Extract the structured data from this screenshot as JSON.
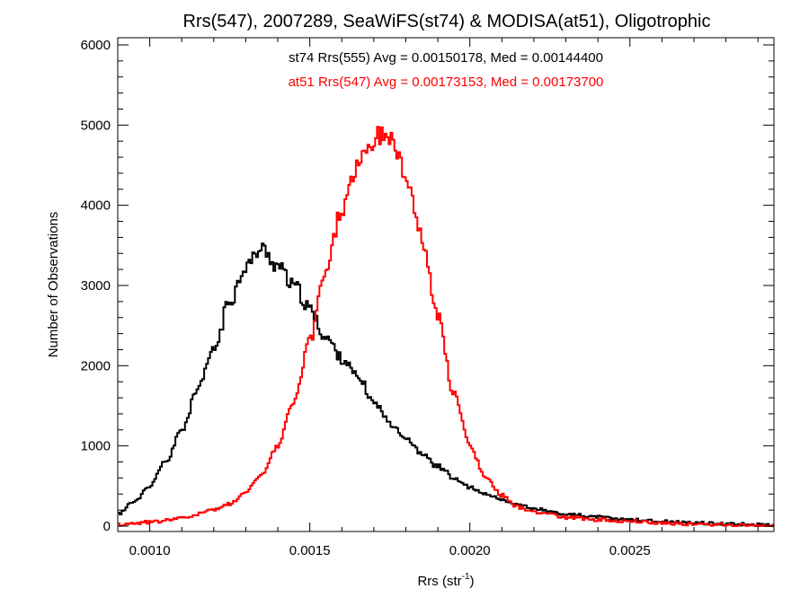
{
  "chart_data": {
    "type": "line",
    "title": "Rrs(547), 2007289, SeaWiFS(st74) & MODISA(at51), Oligotrophic",
    "xlabel": "Rrs (str",
    "xlabel_sup": "-1",
    "xlabel_end": ")",
    "ylabel": "Number of Observations",
    "xlim": [
      0.0009,
      0.00295
    ],
    "ylim": [
      0,
      6000
    ],
    "x_ticks": [
      0.001,
      0.0015,
      0.002,
      0.0025
    ],
    "x_tick_labels": [
      "0.0010",
      "0.0015",
      "0.0020",
      "0.0025"
    ],
    "y_ticks": [
      0,
      1000,
      2000,
      3000,
      4000,
      5000,
      6000
    ],
    "y_tick_labels": [
      "0",
      "1000",
      "2000",
      "3000",
      "4000",
      "5000",
      "6000"
    ],
    "grid": false,
    "annotations": [
      {
        "text": "st74 Rrs(555) Avg = 0.00150178, Med = 0.00144400",
        "color": "#000000"
      },
      {
        "text": "at51 Rrs(547) Avg = 0.00173153, Med = 0.00173700",
        "color": "#ff0000"
      }
    ],
    "series": [
      {
        "color": "#000000",
        "x": [
          0.0009,
          0.00095,
          0.001,
          0.00105,
          0.0011,
          0.00115,
          0.0012,
          0.00125,
          0.0013,
          0.00135,
          0.0014,
          0.00145,
          0.0015,
          0.00155,
          0.0016,
          0.00165,
          0.0017,
          0.00175,
          0.0018,
          0.00185,
          0.0019,
          0.00195,
          0.002,
          0.00205,
          0.0021,
          0.00215,
          0.0022,
          0.00225,
          0.0023,
          0.0024,
          0.0025,
          0.0026,
          0.0027,
          0.0028,
          0.0029,
          0.00295
        ],
        "y": [
          150,
          300,
          500,
          800,
          1200,
          1700,
          2200,
          2800,
          3250,
          3450,
          3250,
          3000,
          2700,
          2350,
          2100,
          1850,
          1550,
          1300,
          1100,
          900,
          750,
          600,
          480,
          390,
          320,
          270,
          220,
          180,
          150,
          110,
          80,
          60,
          40,
          30,
          15,
          10
        ]
      },
      {
        "color": "#ff0000",
        "x": [
          0.0009,
          0.001,
          0.0011,
          0.0012,
          0.00125,
          0.0013,
          0.00135,
          0.0014,
          0.00145,
          0.0015,
          0.00155,
          0.0016,
          0.00165,
          0.0017,
          0.00173,
          0.00175,
          0.0018,
          0.00185,
          0.0019,
          0.00195,
          0.002,
          0.00205,
          0.0021,
          0.00215,
          0.0022,
          0.00225,
          0.0023,
          0.0024,
          0.0025,
          0.0026,
          0.0027,
          0.0028,
          0.0029,
          0.00295
        ],
        "y": [
          20,
          50,
          100,
          200,
          280,
          420,
          650,
          1000,
          1550,
          2300,
          3200,
          3950,
          4500,
          4800,
          4900,
          4850,
          4400,
          3600,
          2600,
          1650,
          1000,
          600,
          380,
          240,
          180,
          140,
          110,
          80,
          60,
          40,
          25,
          15,
          10,
          5
        ]
      }
    ]
  }
}
